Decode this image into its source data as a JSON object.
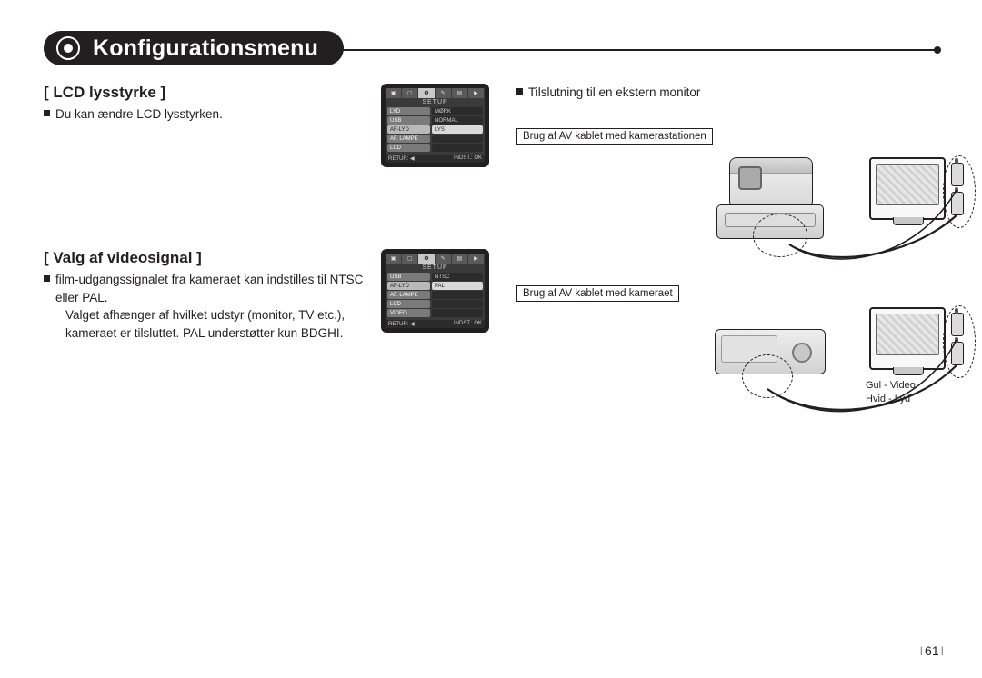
{
  "title": "Konfigurationsmenu",
  "colors": {
    "text": "#231f20",
    "accent_bg": "#231f20",
    "accent_fg": "#ffffff"
  },
  "left": {
    "lcd": {
      "heading": "[ LCD lysstyrke ]",
      "body": "Du kan ændre LCD lysstyrken.",
      "screen": {
        "setup_label": "SETUP",
        "rows": [
          {
            "l": "LYD",
            "r": "MØRK",
            "sel": false
          },
          {
            "l": "USB",
            "r": "NORMAL",
            "sel": false
          },
          {
            "l": "AF-LYD",
            "r": "LYS",
            "sel": true
          },
          {
            "l": "AF. LAMPE",
            "r": "",
            "sel": false
          },
          {
            "l": "LCD",
            "r": "",
            "sel": false
          }
        ],
        "footer_left": "RETUR: ◀",
        "footer_right": "INDST.: OK"
      }
    },
    "video": {
      "heading": "[ Valg af videosignal ]",
      "body1": "film-udgangssignalet fra kameraet kan indstilles til NTSC eller PAL.",
      "body2": "Valget afhænger af hvilket udstyr (monitor, TV etc.), kameraet er tilsluttet. PAL understøtter kun BDGHI.",
      "screen": {
        "setup_label": "SETUP",
        "rows": [
          {
            "l": "USB",
            "r": "NTSC",
            "sel": false
          },
          {
            "l": "AF-LYD",
            "r": "PAL",
            "sel": true
          },
          {
            "l": "AF. LAMPE",
            "r": "",
            "sel": false
          },
          {
            "l": "LCD",
            "r": "",
            "sel": false
          },
          {
            "l": "VIDEO",
            "r": "",
            "sel": false
          }
        ],
        "footer_left": "RETUR: ◀",
        "footer_right": "INDST.: OK"
      }
    }
  },
  "right": {
    "heading": "Tilslutning til en ekstern monitor",
    "box1": "Brug af AV kablet med kamerastationen",
    "box2": "Brug af AV kablet med kameraet",
    "label_yellow": "Gul - Video",
    "label_white": "Hvid - Lyd"
  },
  "page_number": "61"
}
